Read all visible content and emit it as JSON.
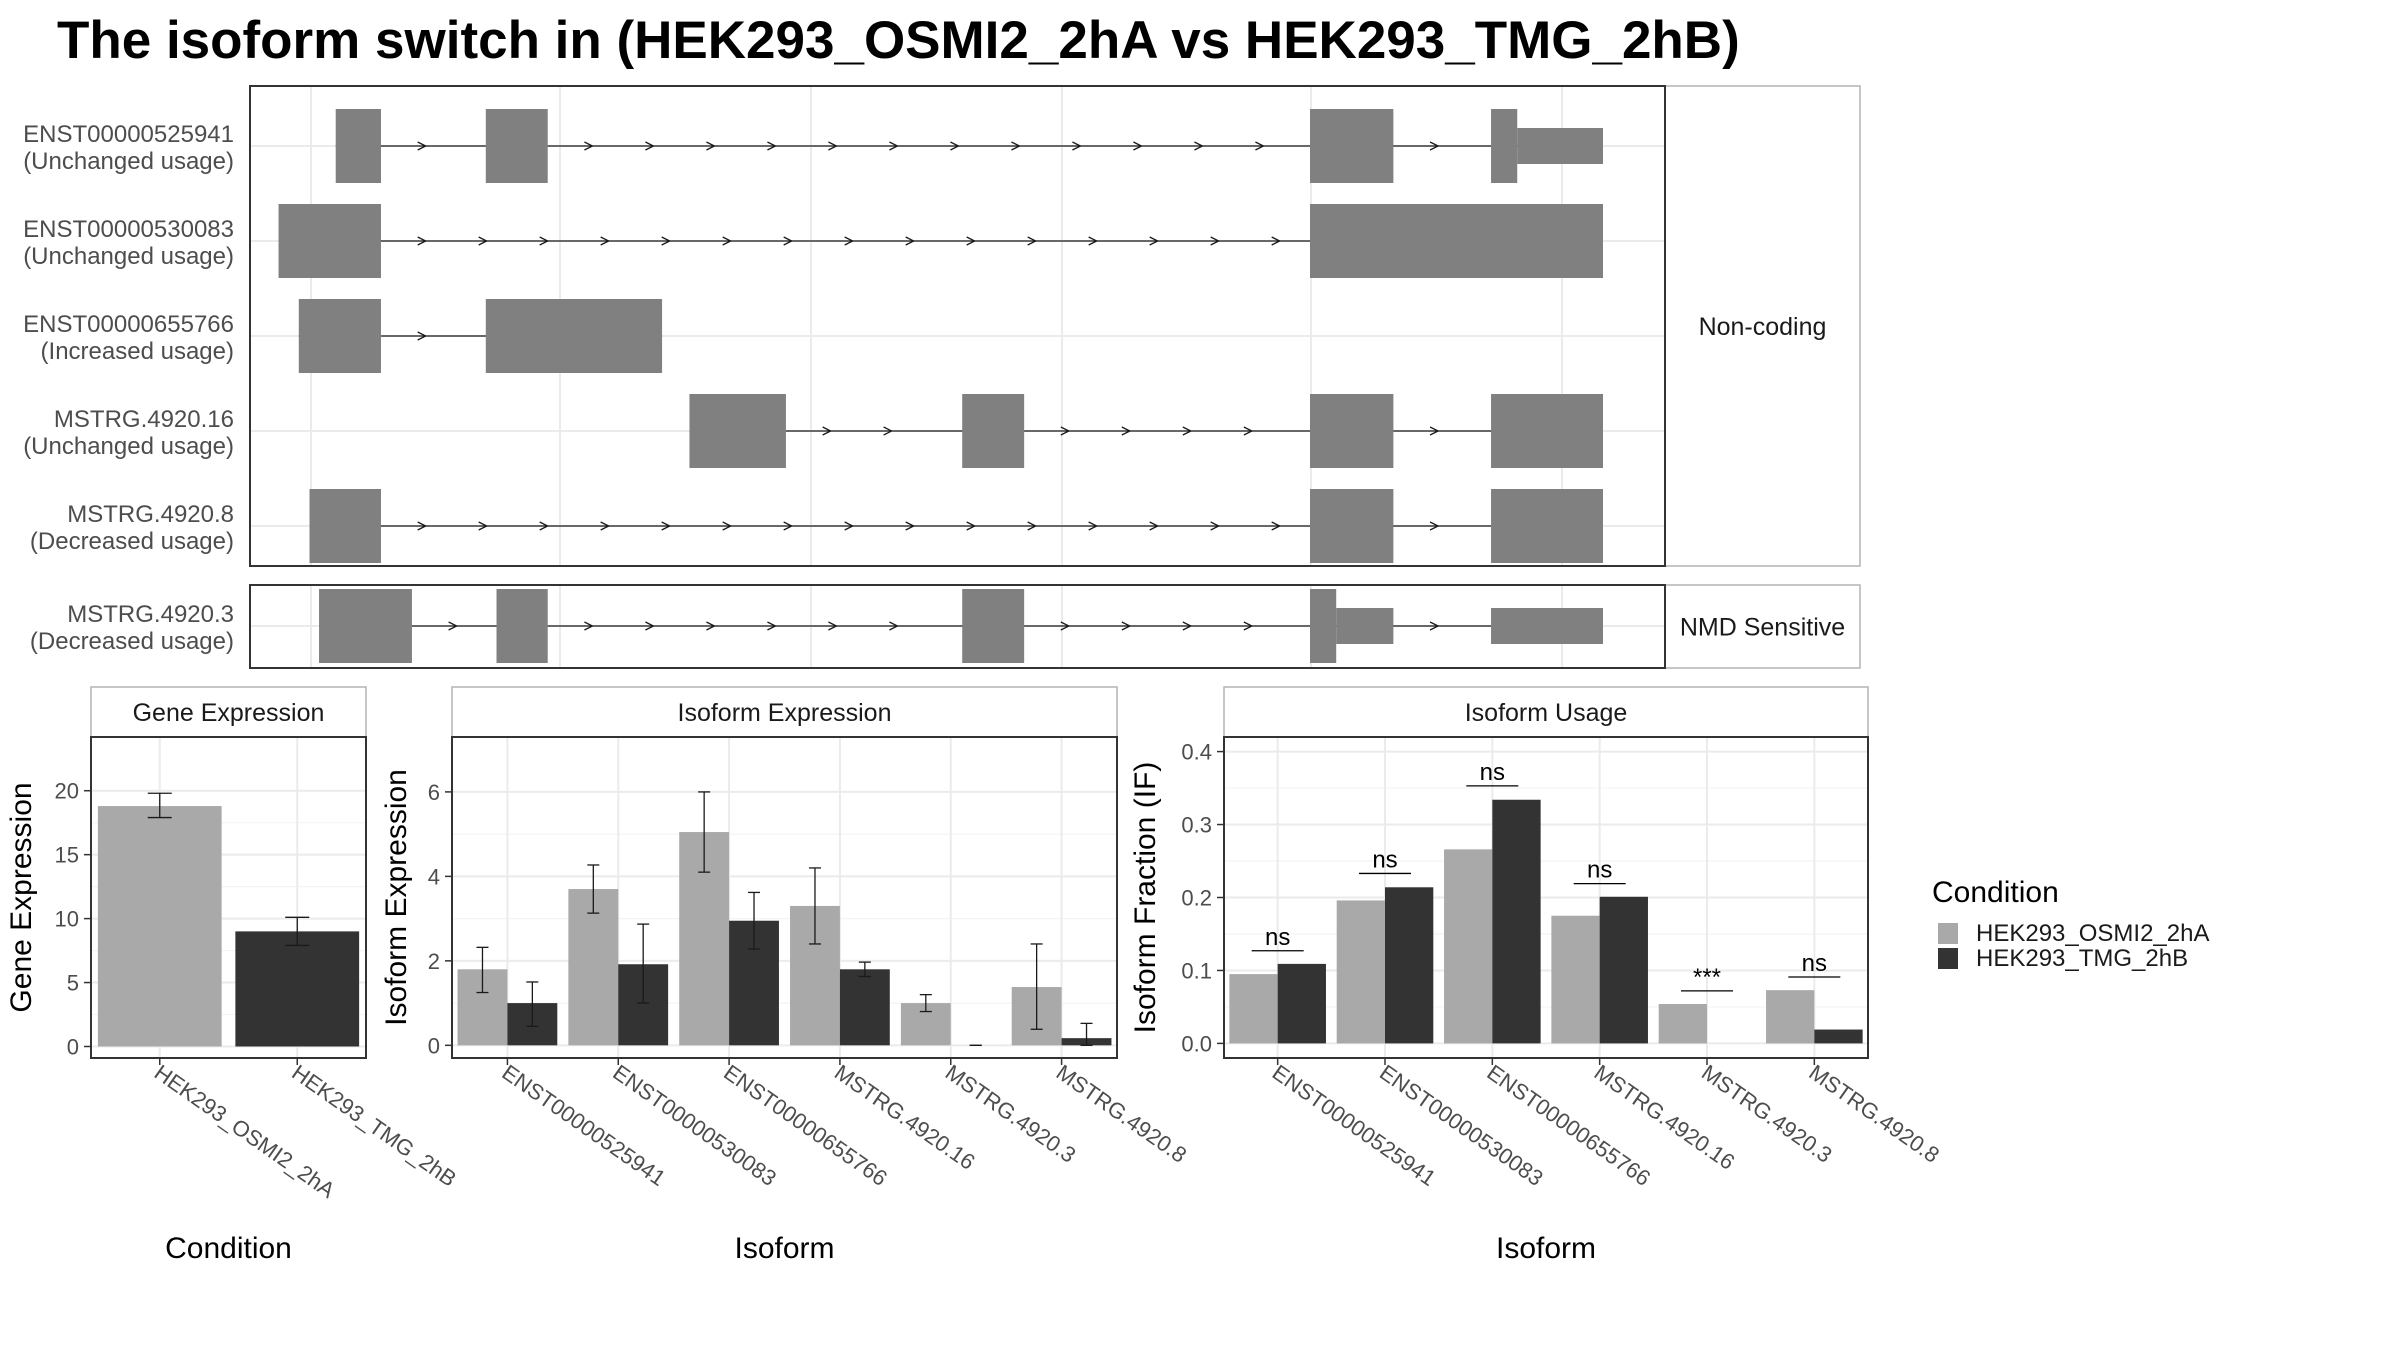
{
  "title": "The isoform switch in  (HEK293_OSMI2_2hA vs HEK293_TMG_2hB)",
  "colors": {
    "exon": "#808080",
    "cond1": "#a9a9a9",
    "cond2": "#333333",
    "grid": "#ebebeb",
    "panel_border": "#333333",
    "strip_border": "#b3b3b3"
  },
  "structure": {
    "groups": [
      {
        "label": "Non-coding",
        "isoforms": [
          {
            "id": "ENST00000525941",
            "status": "(Unchanged usage)",
            "exons": [
              [
                0.078,
                0.116,
                "big"
              ],
              [
                0.204,
                0.256,
                "big"
              ],
              [
                0.896,
                0.966,
                "big"
              ],
              [
                1.048,
                1.07,
                "big"
              ],
              [
                1.07,
                1.142,
                "small"
              ]
            ]
          },
          {
            "id": "ENST00000530083",
            "status": "(Unchanged usage)",
            "exons": [
              [
                0.03,
                0.116,
                "big"
              ],
              [
                0.896,
                1.142,
                "big"
              ]
            ]
          },
          {
            "id": "ENST00000655766",
            "status": "(Increased usage)",
            "exons": [
              [
                0.047,
                0.116,
                "big"
              ],
              [
                0.204,
                0.352,
                "big"
              ]
            ]
          },
          {
            "id": "MSTRG.4920.16",
            "status": "(Unchanged usage)",
            "exons": [
              [
                0.375,
                0.456,
                "big"
              ],
              [
                0.604,
                0.656,
                "big"
              ],
              [
                0.896,
                0.966,
                "big"
              ],
              [
                1.048,
                1.142,
                "big"
              ]
            ]
          },
          {
            "id": "MSTRG.4920.8",
            "status": "(Decreased usage)",
            "exons": [
              [
                0.056,
                0.116,
                "big"
              ],
              [
                0.896,
                0.966,
                "big"
              ],
              [
                1.048,
                1.142,
                "big"
              ]
            ]
          }
        ]
      },
      {
        "label": "NMD Sensitive",
        "isoforms": [
          {
            "id": "MSTRG.4920.3",
            "status": "(Decreased usage)",
            "exons": [
              [
                0.064,
                0.142,
                "big"
              ],
              [
                0.213,
                0.256,
                "big"
              ],
              [
                0.604,
                0.656,
                "big"
              ],
              [
                0.896,
                0.918,
                "big"
              ],
              [
                0.918,
                0.966,
                "small"
              ],
              [
                1.048,
                1.142,
                "small"
              ]
            ]
          }
        ]
      }
    ]
  },
  "chart_data": [
    {
      "type": "bar",
      "title": "Gene Expression",
      "xlabel": "Condition",
      "ylabel": "Gene Expression",
      "categories": [
        "HEK293_OSMI2_2hA",
        "HEK293_TMG_2hB"
      ],
      "values": [
        18.8,
        9.0
      ],
      "error": [
        [
          17.9,
          19.8
        ],
        [
          7.9,
          10.1
        ]
      ],
      "ylim": [
        -0.9,
        24.2
      ],
      "yticks": [
        0,
        5,
        10,
        15,
        20
      ]
    },
    {
      "type": "bar",
      "title": "Isoform Expression",
      "xlabel": "Isoform",
      "ylabel": "Isoform Expression",
      "categories": [
        "ENST00000525941",
        "ENST00000530083",
        "ENST00000655766",
        "MSTRG.4920.16",
        "MSTRG.4920.3",
        "MSTRG.4920.8"
      ],
      "series": [
        {
          "name": "HEK293_OSMI2_2hA",
          "values": [
            1.8,
            3.7,
            5.05,
            3.3,
            1.0,
            1.38
          ],
          "error": [
            [
              1.25,
              2.32
            ],
            [
              3.13,
              4.27
            ],
            [
              4.1,
              6.0
            ],
            [
              2.4,
              4.2
            ],
            [
              0.8,
              1.2
            ],
            [
              0.38,
              2.4
            ]
          ]
        },
        {
          "name": "HEK293_TMG_2hB",
          "values": [
            1.0,
            1.92,
            2.95,
            1.8,
            0.0,
            0.17
          ],
          "error": [
            [
              0.45,
              1.5
            ],
            [
              1.0,
              2.87
            ],
            [
              2.28,
              3.62
            ],
            [
              1.63,
              1.97
            ],
            [
              0.0,
              0.0
            ],
            [
              0.0,
              0.52
            ]
          ]
        }
      ],
      "ylim": [
        -0.3,
        7.3
      ],
      "yticks": [
        0,
        2,
        4,
        6
      ]
    },
    {
      "type": "bar",
      "title": "Isoform Usage",
      "xlabel": "Isoform",
      "ylabel": "Isoform Fraction (IF)",
      "categories": [
        "ENST00000525941",
        "ENST00000530083",
        "ENST00000655766",
        "MSTRG.4920.16",
        "MSTRG.4920.3",
        "MSTRG.4920.8"
      ],
      "series": [
        {
          "name": "HEK293_OSMI2_2hA",
          "values": [
            0.095,
            0.196,
            0.266,
            0.175,
            0.054,
            0.073
          ]
        },
        {
          "name": "HEK293_TMG_2hB",
          "values": [
            0.109,
            0.214,
            0.334,
            0.201,
            0.0,
            0.019
          ]
        }
      ],
      "significance": [
        {
          "label": "ns",
          "y": 0.127
        },
        {
          "label": "ns",
          "y": 0.233
        },
        {
          "label": "ns",
          "y": 0.353
        },
        {
          "label": "ns",
          "y": 0.219
        },
        {
          "label": "***",
          "y": 0.072
        },
        {
          "label": "ns",
          "y": 0.091
        }
      ],
      "ylim": [
        -0.02,
        0.42
      ],
      "yticks": [
        0.0,
        0.1,
        0.2,
        0.3,
        0.4
      ],
      "ytick_labels": [
        "0.0",
        "0.1",
        "0.2",
        "0.3",
        "0.4"
      ]
    }
  ],
  "legend": {
    "title": "Condition",
    "items": [
      "HEK293_OSMI2_2hA",
      "HEK293_TMG_2hB"
    ]
  }
}
